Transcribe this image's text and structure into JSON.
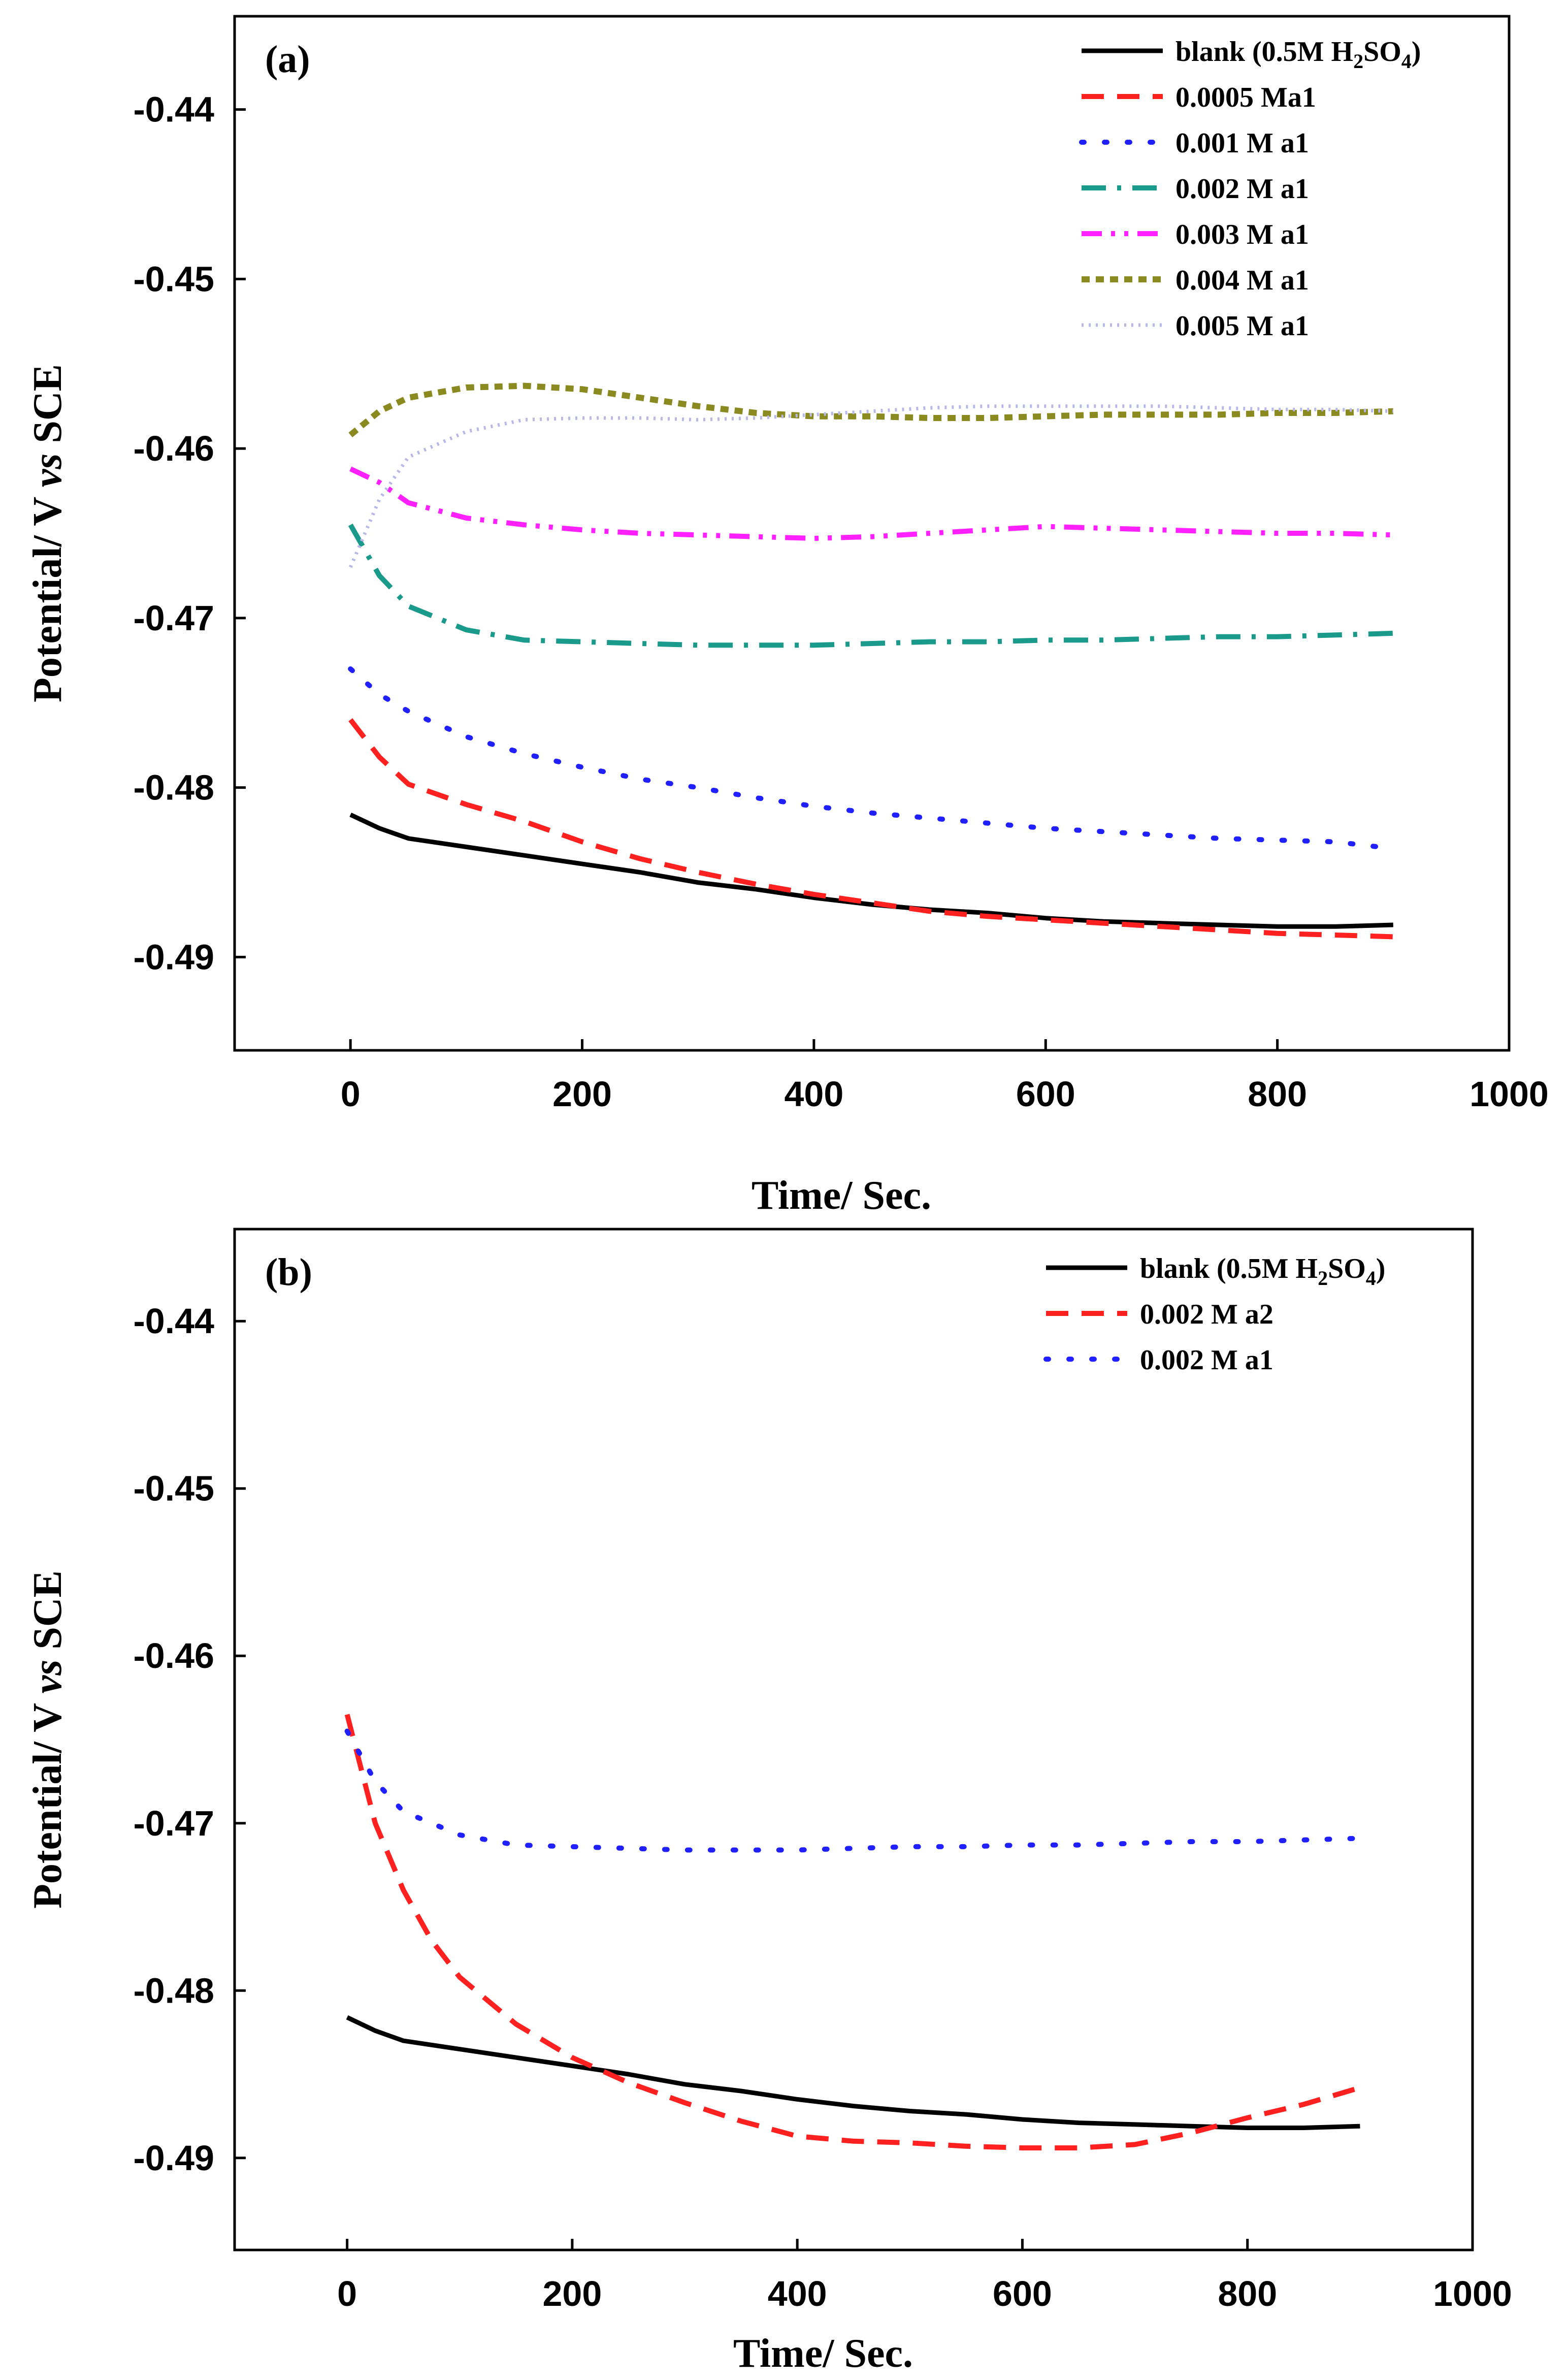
{
  "chart_data": [
    {
      "type": "line",
      "panel_label": "(a)",
      "xlabel": "Time/ Sec.",
      "ylabel_parts": [
        "Potential/ V ",
        "vs",
        " SCE"
      ],
      "xlim": [
        -100,
        1000
      ],
      "ylim": [
        -0.4955,
        -0.4345
      ],
      "xticks": [
        0,
        200,
        400,
        600,
        800,
        1000
      ],
      "xtick_labels": [
        "0",
        "200",
        "400",
        "600",
        "800",
        "1000"
      ],
      "yticks": [
        -0.44,
        -0.45,
        -0.46,
        -0.47,
        -0.48,
        -0.49
      ],
      "ytick_labels": [
        "-0.44",
        "-0.45",
        "-0.46",
        "-0.47",
        "-0.48",
        "-0.49"
      ],
      "legend_position": "top-right",
      "series": [
        {
          "name": "blank (0.5M H2SO4)",
          "label_parts": [
            "blank (0.5M H",
            "2",
            "SO",
            "4",
            ")"
          ],
          "color": "#000000",
          "style": "solid",
          "x": [
            0,
            25,
            50,
            100,
            150,
            200,
            250,
            300,
            350,
            400,
            450,
            500,
            550,
            600,
            650,
            700,
            750,
            800,
            850,
            900
          ],
          "y": [
            -0.4816,
            -0.4824,
            -0.483,
            -0.4835,
            -0.484,
            -0.4845,
            -0.485,
            -0.4856,
            -0.486,
            -0.4865,
            -0.4869,
            -0.4872,
            -0.4874,
            -0.4877,
            -0.4879,
            -0.488,
            -0.4881,
            -0.4882,
            -0.4882,
            -0.4881
          ]
        },
        {
          "name": "0.0005 Ma1",
          "label_parts": [
            "0.0005 Ma1"
          ],
          "color": "#ff2020",
          "style": "dash",
          "x": [
            0,
            25,
            50,
            100,
            150,
            200,
            250,
            300,
            350,
            400,
            450,
            500,
            550,
            600,
            650,
            700,
            750,
            800,
            850,
            900
          ],
          "y": [
            -0.476,
            -0.4782,
            -0.4798,
            -0.481,
            -0.482,
            -0.4832,
            -0.4842,
            -0.485,
            -0.4857,
            -0.4863,
            -0.4868,
            -0.4873,
            -0.4876,
            -0.4878,
            -0.488,
            -0.4882,
            -0.4884,
            -0.4886,
            -0.4887,
            -0.4888
          ]
        },
        {
          "name": "0.001 M a1",
          "label_parts": [
            "0.001 M a1"
          ],
          "color": "#2020ff",
          "style": "dot",
          "x": [
            0,
            25,
            50,
            100,
            150,
            200,
            250,
            300,
            350,
            400,
            450,
            500,
            550,
            600,
            650,
            700,
            750,
            800,
            850,
            900
          ],
          "y": [
            -0.473,
            -0.4745,
            -0.4755,
            -0.477,
            -0.478,
            -0.4788,
            -0.4795,
            -0.48,
            -0.4806,
            -0.4811,
            -0.4815,
            -0.4818,
            -0.4821,
            -0.4824,
            -0.4826,
            -0.4828,
            -0.483,
            -0.4831,
            -0.4832,
            -0.4836
          ]
        },
        {
          "name": "0.002 M a1",
          "label_parts": [
            "0.002 M a1"
          ],
          "color": "#1a9a8a",
          "style": "dashdot",
          "x": [
            0,
            25,
            50,
            100,
            150,
            200,
            250,
            300,
            350,
            400,
            450,
            500,
            550,
            600,
            650,
            700,
            750,
            800,
            850,
            900
          ],
          "y": [
            -0.4645,
            -0.4675,
            -0.4693,
            -0.4707,
            -0.4713,
            -0.4714,
            -0.4715,
            -0.4716,
            -0.4716,
            -0.4716,
            -0.4715,
            -0.4714,
            -0.4714,
            -0.4713,
            -0.4713,
            -0.4712,
            -0.4711,
            -0.4711,
            -0.471,
            -0.4709
          ]
        },
        {
          "name": "0.003 M a1",
          "label_parts": [
            "0.003 M a1"
          ],
          "color": "#ff20ff",
          "style": "dashdotdot",
          "x": [
            0,
            25,
            50,
            100,
            150,
            200,
            250,
            300,
            350,
            400,
            450,
            500,
            550,
            600,
            650,
            700,
            750,
            800,
            850,
            900
          ],
          "y": [
            -0.4612,
            -0.462,
            -0.4632,
            -0.4641,
            -0.4645,
            -0.4648,
            -0.465,
            -0.4651,
            -0.4652,
            -0.4653,
            -0.4652,
            -0.465,
            -0.4648,
            -0.4646,
            -0.4647,
            -0.4648,
            -0.4649,
            -0.465,
            -0.465,
            -0.4651
          ]
        },
        {
          "name": "0.004 M a1",
          "label_parts": [
            "0.004 M a1"
          ],
          "color": "#8a8a20",
          "style": "shortdash",
          "x": [
            0,
            25,
            50,
            100,
            150,
            200,
            250,
            300,
            350,
            400,
            450,
            500,
            550,
            600,
            650,
            700,
            750,
            800,
            850,
            900
          ],
          "y": [
            -0.4592,
            -0.4578,
            -0.457,
            -0.4564,
            -0.4563,
            -0.4565,
            -0.457,
            -0.4575,
            -0.4579,
            -0.4581,
            -0.4581,
            -0.4582,
            -0.4582,
            -0.4581,
            -0.458,
            -0.458,
            -0.458,
            -0.4579,
            -0.4579,
            -0.4578
          ]
        },
        {
          "name": "0.005 M a1",
          "label_parts": [
            "0.005 M a1"
          ],
          "color": "#b8b8e8",
          "style": "finedot",
          "x": [
            0,
            25,
            50,
            100,
            150,
            200,
            250,
            300,
            350,
            400,
            450,
            500,
            550,
            600,
            650,
            700,
            750,
            800,
            850,
            900
          ],
          "y": [
            -0.467,
            -0.463,
            -0.4605,
            -0.459,
            -0.4583,
            -0.4582,
            -0.4582,
            -0.4583,
            -0.4582,
            -0.458,
            -0.4578,
            -0.4576,
            -0.4575,
            -0.4575,
            -0.4575,
            -0.4575,
            -0.4576,
            -0.4577,
            -0.4577,
            -0.4578
          ]
        }
      ]
    },
    {
      "type": "line",
      "panel_label": "(b)",
      "xlabel": "Time/ Sec.",
      "ylabel_parts": [
        "Potential/ V ",
        "vs",
        " SCE"
      ],
      "xlim": [
        -100,
        1000
      ],
      "ylim": [
        -0.4955,
        -0.4345
      ],
      "xticks": [
        0,
        200,
        400,
        600,
        800,
        1000
      ],
      "xtick_labels": [
        "0",
        "200",
        "400",
        "600",
        "800",
        "1000"
      ],
      "yticks": [
        -0.44,
        -0.45,
        -0.46,
        -0.47,
        -0.48,
        -0.49
      ],
      "ytick_labels": [
        "-0.44",
        "-0.45",
        "-0.46",
        "-0.47",
        "-0.48",
        "-0.49"
      ],
      "legend_position": "top-right",
      "series": [
        {
          "name": "blank (0.5M H2SO4)",
          "label_parts": [
            "blank (0.5M H",
            "2",
            "SO",
            "4",
            ")"
          ],
          "color": "#000000",
          "style": "solid",
          "x": [
            0,
            25,
            50,
            100,
            150,
            200,
            250,
            300,
            350,
            400,
            450,
            500,
            550,
            600,
            650,
            700,
            750,
            800,
            850,
            900
          ],
          "y": [
            -0.4816,
            -0.4824,
            -0.483,
            -0.4835,
            -0.484,
            -0.4845,
            -0.485,
            -0.4856,
            -0.486,
            -0.4865,
            -0.4869,
            -0.4872,
            -0.4874,
            -0.4877,
            -0.4879,
            -0.488,
            -0.4881,
            -0.4882,
            -0.4882,
            -0.4881
          ]
        },
        {
          "name": "0.002 M a2",
          "label_parts": [
            "0.002 M a2"
          ],
          "color": "#ff2020",
          "style": "dash",
          "x": [
            0,
            25,
            50,
            75,
            100,
            150,
            200,
            250,
            300,
            350,
            400,
            450,
            500,
            550,
            600,
            650,
            700,
            750,
            800,
            850,
            900
          ],
          "y": [
            -0.4635,
            -0.47,
            -0.474,
            -0.477,
            -0.4792,
            -0.482,
            -0.484,
            -0.4855,
            -0.4867,
            -0.4878,
            -0.4887,
            -0.489,
            -0.4891,
            -0.4893,
            -0.4894,
            -0.4894,
            -0.4892,
            -0.4885,
            -0.4876,
            -0.4868,
            -0.4858
          ]
        },
        {
          "name": "0.002 M a1",
          "label_parts": [
            "0.002 M a1"
          ],
          "color": "#2020ff",
          "style": "dot",
          "x": [
            0,
            25,
            50,
            100,
            150,
            200,
            250,
            300,
            350,
            400,
            450,
            500,
            550,
            600,
            650,
            700,
            750,
            800,
            850,
            900
          ],
          "y": [
            -0.4645,
            -0.4675,
            -0.4693,
            -0.4707,
            -0.4713,
            -0.4714,
            -0.4715,
            -0.4716,
            -0.4716,
            -0.4716,
            -0.4715,
            -0.4714,
            -0.4714,
            -0.4713,
            -0.4713,
            -0.4712,
            -0.4711,
            -0.4711,
            -0.471,
            -0.4709
          ]
        }
      ]
    }
  ]
}
